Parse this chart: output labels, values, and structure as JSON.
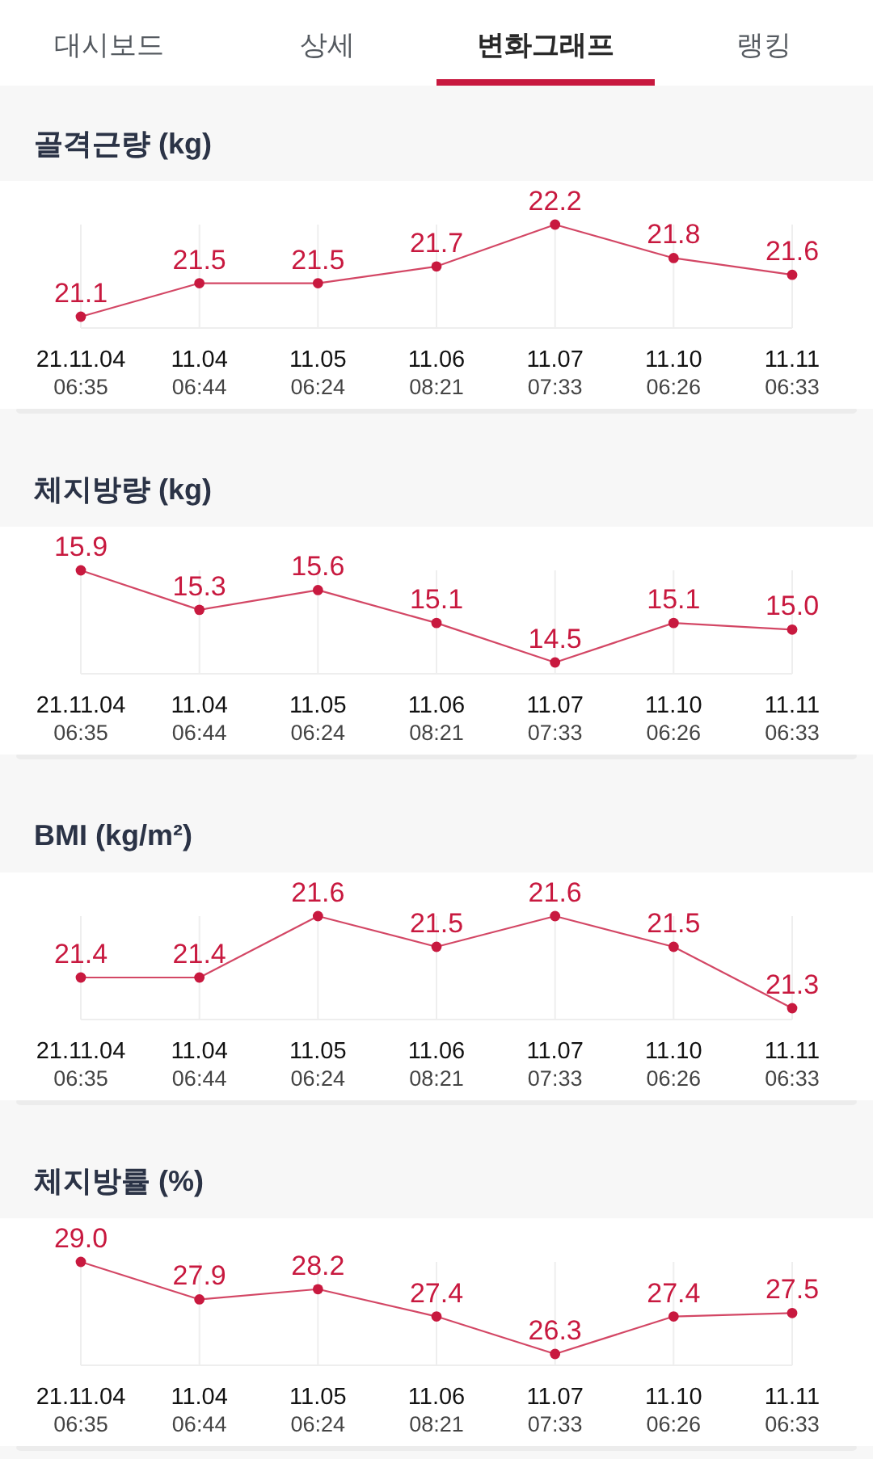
{
  "chart_data": [
    {
      "type": "other",
      "annotations": [
        "대시보드",
        "상세",
        "변화그래프",
        "랭킹"
      ]
    },
    {
      "type": "line",
      "title": "골격근량 (kg)",
      "categories": [
        "21.11.04\n06:35",
        "11.04\n06:44",
        "11.05\n06:24",
        "11.06\n08:21",
        "11.07\n07:33",
        "11.10\n06:26",
        "11.11\n06:33"
      ],
      "series": [
        {
          "color": "#c8193f",
          "values": [
            21.1,
            21.5,
            21.5,
            21.7,
            22.2,
            21.8,
            21.6
          ],
          "value_labels": [
            "21.1",
            "21.5",
            "21.5",
            "21.7",
            "22.2",
            "21.8",
            "21.6"
          ]
        }
      ],
      "grid": "x",
      "marker": "circle"
    },
    {
      "type": "line",
      "title": "체지방량 (kg)",
      "categories": [
        "21.11.04\n06:35",
        "11.04\n06:44",
        "11.05\n06:24",
        "11.06\n08:21",
        "11.07\n07:33",
        "11.10\n06:26",
        "11.11\n06:33"
      ],
      "series": [
        {
          "color": "#c8193f",
          "values": [
            15.9,
            15.3,
            15.6,
            15.1,
            14.5,
            15.1,
            15.0
          ],
          "value_labels": [
            "15.9",
            "15.3",
            "15.6",
            "15.1",
            "14.5",
            "15.1",
            "15.0"
          ]
        }
      ],
      "grid": "x",
      "marker": "circle"
    },
    {
      "type": "line",
      "title": "BMI (kg/m²)",
      "categories": [
        "21.11.04\n06:35",
        "11.04\n06:44",
        "11.05\n06:24",
        "11.06\n08:21",
        "11.07\n07:33",
        "11.10\n06:26",
        "11.11\n06:33"
      ],
      "series": [
        {
          "color": "#c8193f",
          "values": [
            21.4,
            21.4,
            21.6,
            21.5,
            21.6,
            21.5,
            21.3
          ],
          "value_labels": [
            "21.4",
            "21.4",
            "21.6",
            "21.5",
            "21.6",
            "21.5",
            "21.3"
          ]
        }
      ],
      "grid": "x",
      "marker": "circle"
    },
    {
      "type": "line",
      "title": "체지방률 (%)",
      "categories": [
        "21.11.04\n06:35",
        "11.04\n06:44",
        "11.05\n06:24",
        "11.06\n08:21",
        "11.07\n07:33",
        "11.10\n06:26",
        "11.11\n06:33"
      ],
      "series": [
        {
          "color": "#c8193f",
          "values": [
            29.0,
            27.9,
            28.2,
            27.4,
            26.3,
            27.4,
            27.5
          ],
          "value_labels": [
            "29.0",
            "27.9",
            "28.2",
            "27.4",
            "26.3",
            "27.4",
            "27.5"
          ]
        }
      ],
      "grid": "x",
      "marker": "circle"
    }
  ]
}
